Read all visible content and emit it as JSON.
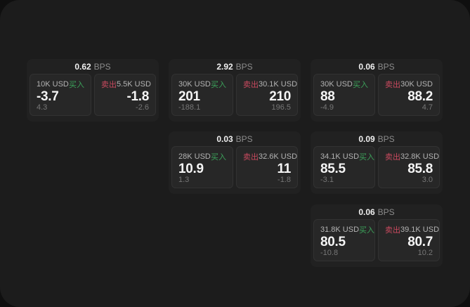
{
  "labels": {
    "bps_unit": "BPS",
    "buy": "买入",
    "sell": "卖出"
  },
  "colors": {
    "window_bg": "#1c1c1c",
    "card_bg": "#212121",
    "panel_bg": "#272727",
    "buy_green": "#3ca15a",
    "sell_red": "#ca4a5f",
    "price_text": "#f5f5f5",
    "muted_text": "#767676"
  },
  "cards": [
    {
      "bps": "0.62",
      "buy": {
        "notional": "10K USD",
        "price": "-3.7",
        "change": "4.3"
      },
      "sell": {
        "notional": "5.5K USD",
        "price": "-1.8",
        "change": "-2.6"
      }
    },
    {
      "bps": "2.92",
      "buy": {
        "notional": "30K USD",
        "price": "201",
        "change": "-188.1"
      },
      "sell": {
        "notional": "30.1K USD",
        "price": "210",
        "change": "196.5"
      }
    },
    {
      "bps": "0.06",
      "buy": {
        "notional": "30K USD",
        "price": "88",
        "change": "-4.9"
      },
      "sell": {
        "notional": "30K USD",
        "price": "88.2",
        "change": "4.7"
      }
    },
    {
      "bps": "0.03",
      "buy": {
        "notional": "28K USD",
        "price": "10.9",
        "change": "1.3"
      },
      "sell": {
        "notional": "32.6K USD",
        "price": "11",
        "change": "-1.8"
      }
    },
    {
      "bps": "0.09",
      "buy": {
        "notional": "34.1K USD",
        "price": "85.5",
        "change": "-3.1"
      },
      "sell": {
        "notional": "32.8K USD",
        "price": "85.8",
        "change": "3.0"
      }
    },
    {
      "bps": "0.06",
      "buy": {
        "notional": "31.8K USD",
        "price": "80.5",
        "change": "-10.8"
      },
      "sell": {
        "notional": "39.1K USD",
        "price": "80.7",
        "change": "10.2"
      }
    }
  ]
}
